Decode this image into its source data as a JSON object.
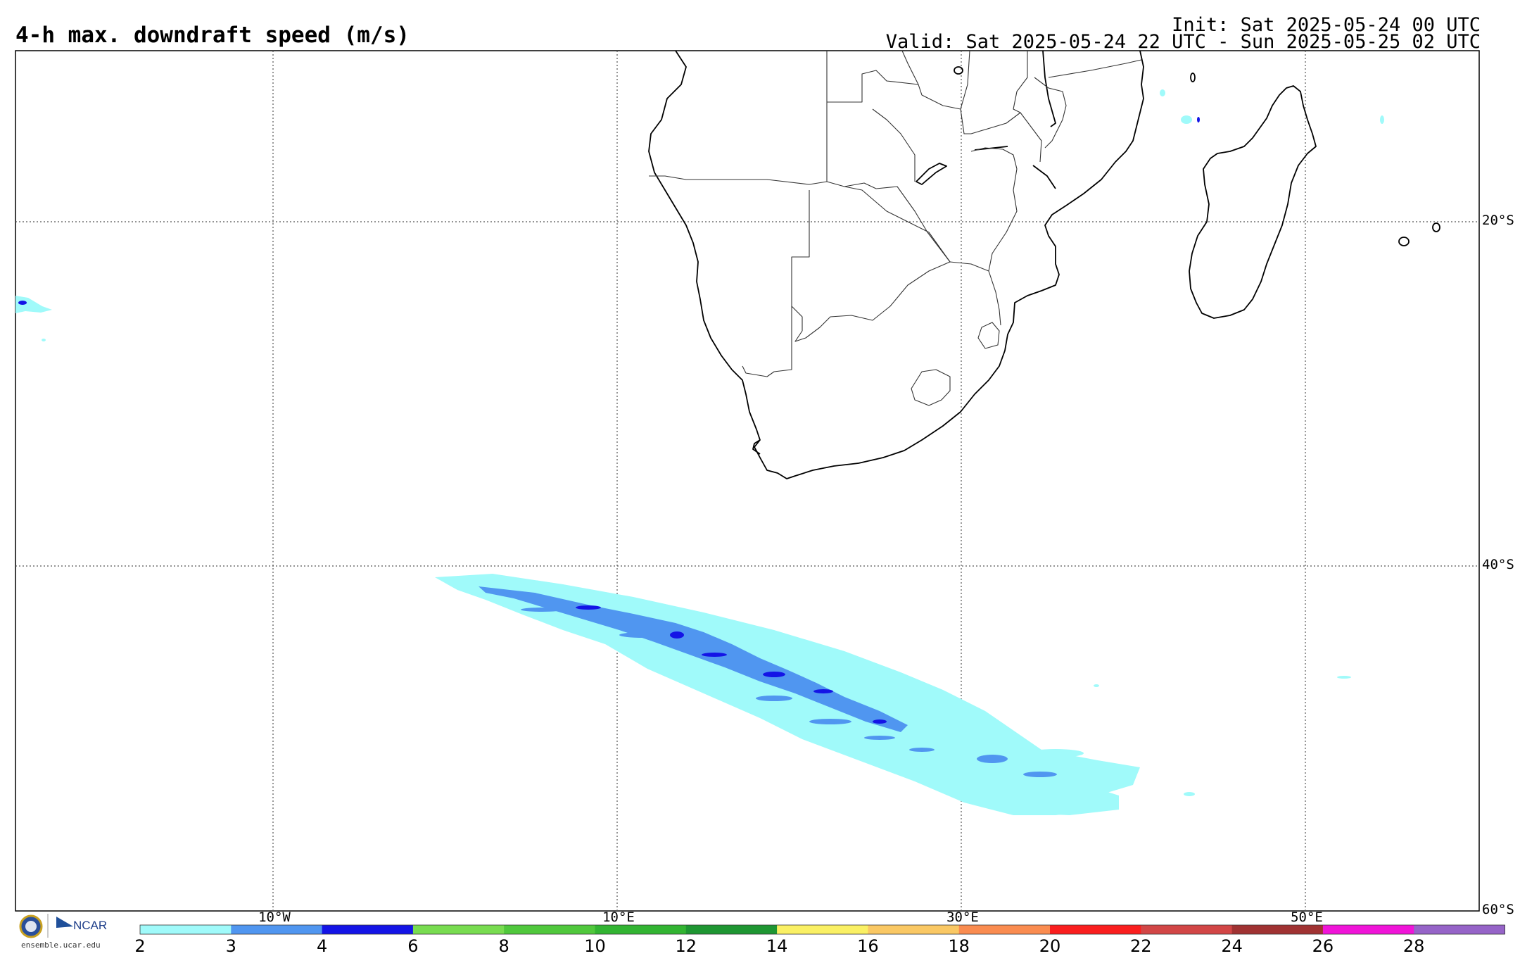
{
  "header": {
    "title": "4-h max. downdraft speed (m/s)",
    "init": "Init: Sat 2025-05-24 00 UTC",
    "valid": "Valid: Sat 2025-05-24 22 UTC - Sun 2025-05-25 02 UTC"
  },
  "map": {
    "lat_labels": [
      "20°S",
      "40°S",
      "60°S"
    ],
    "lon_labels": [
      "10°W",
      "10°E",
      "30°E",
      "50°E"
    ]
  },
  "colorbar": {
    "ticks": [
      "2",
      "3",
      "4",
      "6",
      "8",
      "10",
      "12",
      "14",
      "16",
      "18",
      "20",
      "22",
      "24",
      "26",
      "28"
    ],
    "colors": [
      "#a0fafa",
      "#5096f0",
      "#1414e6",
      "#78dc50",
      "#50c83c",
      "#32b432",
      "#1e9632",
      "#faf064",
      "#fac864",
      "#fa8c50",
      "#fa1e1e",
      "#d24646",
      "#a03232",
      "#f014d8",
      "#9664c8"
    ]
  },
  "branding": {
    "logo_text": "NCAR",
    "site": "ensemble.ucar.edu"
  }
}
